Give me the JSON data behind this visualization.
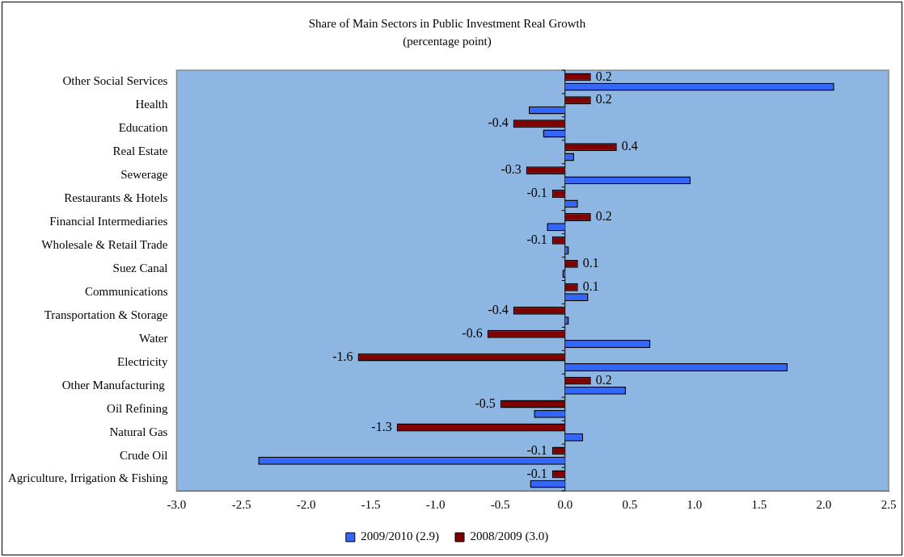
{
  "chart_data": {
    "type": "bar",
    "orientation": "horizontal",
    "title": "Share of Main Sectors in Public Investment Real Growth",
    "subtitle": "(percentage point)",
    "categories": [
      "Other Social Services",
      "Health",
      "Education",
      "Real Estate",
      "Sewerage",
      "Restaurants & Hotels",
      "Financial Intermediaries",
      "Wholesale & Retail Trade",
      "Suez Canal",
      "Communications",
      "Transportation & Storage",
      "Water",
      "Electricity",
      "Other Manufacturing ",
      "Oil Refining",
      "Natural Gas",
      "Crude Oil",
      "Agriculture, Irrigation & Fishing"
    ],
    "series": [
      {
        "name": "2009/2010 (2.9)",
        "color": "#3366ff",
        "values": [
          2.08,
          -0.28,
          -0.17,
          0.07,
          0.97,
          0.1,
          -0.14,
          0.03,
          -0.02,
          0.18,
          0.03,
          0.66,
          1.72,
          0.47,
          -0.24,
          0.14,
          -2.37,
          -0.27
        ]
      },
      {
        "name": "2008/2009 (3.0)",
        "color": "#800000",
        "values": [
          0.2,
          0.2,
          -0.4,
          0.4,
          -0.3,
          -0.1,
          0.2,
          -0.1,
          0.1,
          0.1,
          -0.4,
          -0.6,
          -1.6,
          0.2,
          -0.5,
          -1.3,
          -0.1,
          -0.1
        ],
        "value_labels": [
          "0.2",
          "0.2",
          "-0.4",
          "0.4",
          "-0.3",
          "-0.1",
          "0.2",
          "-0.1",
          "0.1",
          "0.1",
          "-0.4",
          "-0.6",
          "-1.6",
          "0.2",
          "-0.5",
          "-1.3",
          "-0.1",
          "-0.1"
        ]
      }
    ],
    "xlim": [
      -3,
      2.5
    ],
    "xticks": [
      "-3.0",
      "-2.5",
      "-2.0",
      "-1.5",
      "-1.0",
      "-0.5",
      "0.0",
      "0.5",
      "1.0",
      "1.5",
      "2.0",
      "2.5"
    ],
    "grid": false,
    "legend": "bottom"
  }
}
